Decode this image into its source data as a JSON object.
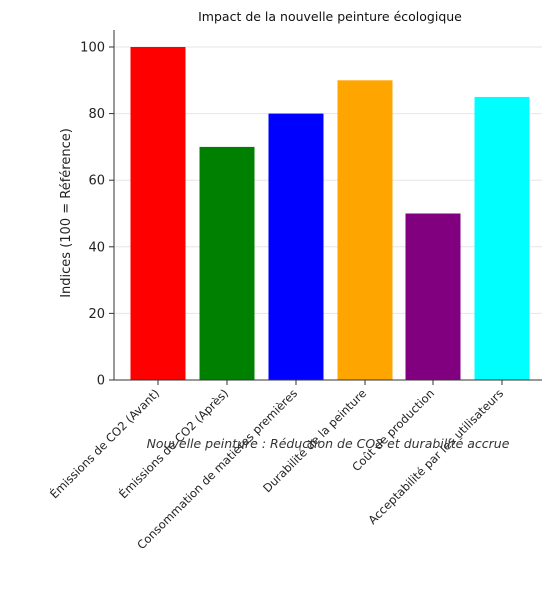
{
  "chart_data": {
    "type": "bar",
    "title": "Impact de la nouvelle peinture écologique",
    "ylabel": "Indices (100 = Référence)",
    "xlabel": "",
    "caption": "Nouvelle peinture : Réduction de CO2 et durabilité accrue",
    "ylim": [
      0,
      105
    ],
    "yticks": [
      0,
      20,
      40,
      60,
      80,
      100
    ],
    "grid": true,
    "categories": [
      "Émissions de CO2 (Avant)",
      "Émissions de CO2 (Après)",
      "Consommation de matières premières",
      "Durabilité de la peinture",
      "Coût de production",
      "Acceptabilité par les utilisateurs"
    ],
    "values": [
      100,
      70,
      80,
      90,
      50,
      85
    ],
    "colors": [
      "#ff0000",
      "#008000",
      "#0000ff",
      "#ffa500",
      "#800080",
      "#00ffff"
    ]
  }
}
